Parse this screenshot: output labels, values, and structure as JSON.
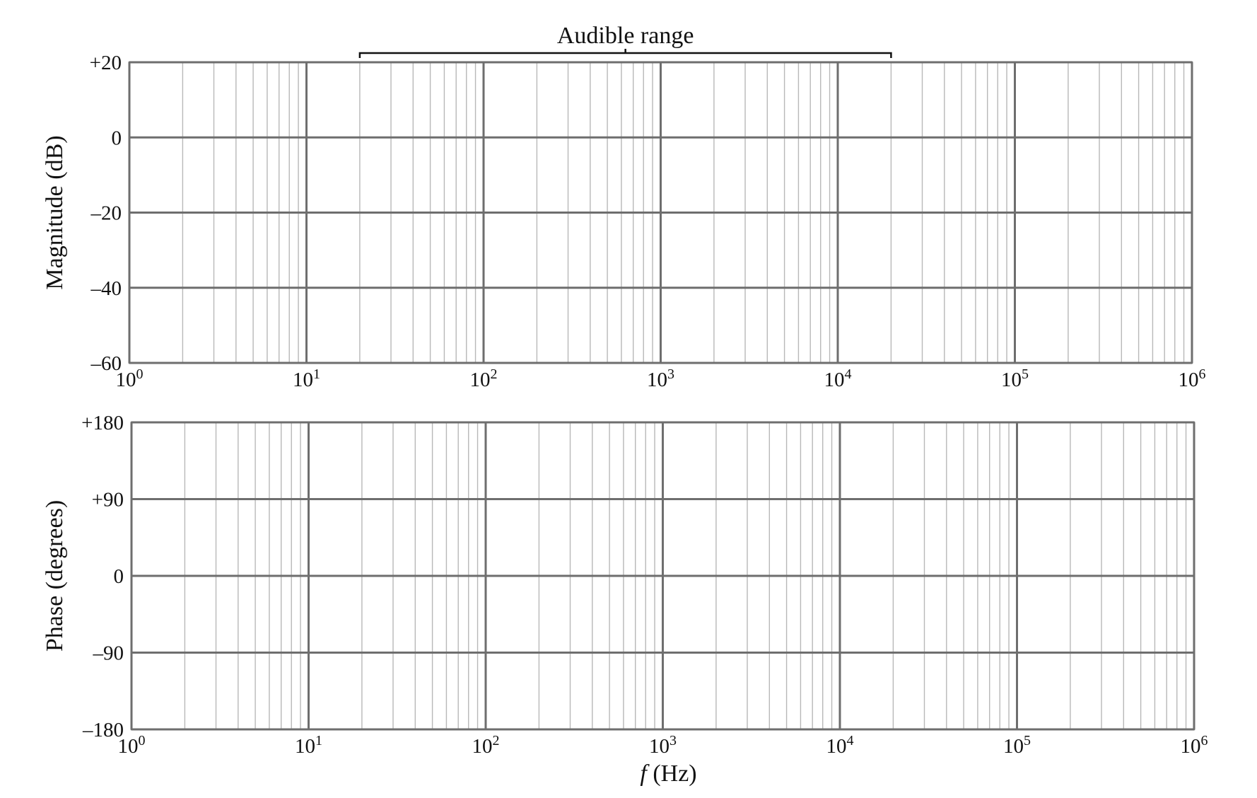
{
  "chart_data": [
    {
      "type": "line",
      "panel": "magnitude",
      "xscale": "log",
      "xlim": [
        1,
        1000000
      ],
      "xticks": [
        1,
        10,
        100,
        1000,
        10000,
        100000,
        1000000
      ],
      "xtick_labels": [
        {
          "base": "10",
          "exp": "0"
        },
        {
          "base": "10",
          "exp": "1"
        },
        {
          "base": "10",
          "exp": "2"
        },
        {
          "base": "10",
          "exp": "3"
        },
        {
          "base": "10",
          "exp": "4"
        },
        {
          "base": "10",
          "exp": "5"
        },
        {
          "base": "10",
          "exp": "6"
        }
      ],
      "ylim": [
        -60,
        20
      ],
      "yticks": [
        20,
        0,
        -20,
        -40,
        -60
      ],
      "ytick_labels": [
        "+20",
        "0",
        "–20",
        "–40",
        "–60"
      ],
      "ylabel": "Magnitude (dB)",
      "xlabel": "",
      "grid": true,
      "series": [],
      "annotation": {
        "text": "Audible range",
        "from": 20,
        "to": 20000
      }
    },
    {
      "type": "line",
      "panel": "phase",
      "xscale": "log",
      "xlim": [
        1,
        1000000
      ],
      "xticks": [
        1,
        10,
        100,
        1000,
        10000,
        100000,
        1000000
      ],
      "xtick_labels": [
        {
          "base": "10",
          "exp": "0"
        },
        {
          "base": "10",
          "exp": "1"
        },
        {
          "base": "10",
          "exp": "2"
        },
        {
          "base": "10",
          "exp": "3"
        },
        {
          "base": "10",
          "exp": "4"
        },
        {
          "base": "10",
          "exp": "5"
        },
        {
          "base": "10",
          "exp": "6"
        }
      ],
      "ylim": [
        -180,
        180
      ],
      "yticks": [
        180,
        90,
        0,
        -90,
        -180
      ],
      "ytick_labels": [
        "+180",
        "+90",
        "0",
        "–90",
        "–180"
      ],
      "ylabel": "Phase (degrees)",
      "xlabel": {
        "var": "f",
        "unit": " (Hz)"
      },
      "grid": true,
      "series": []
    }
  ]
}
